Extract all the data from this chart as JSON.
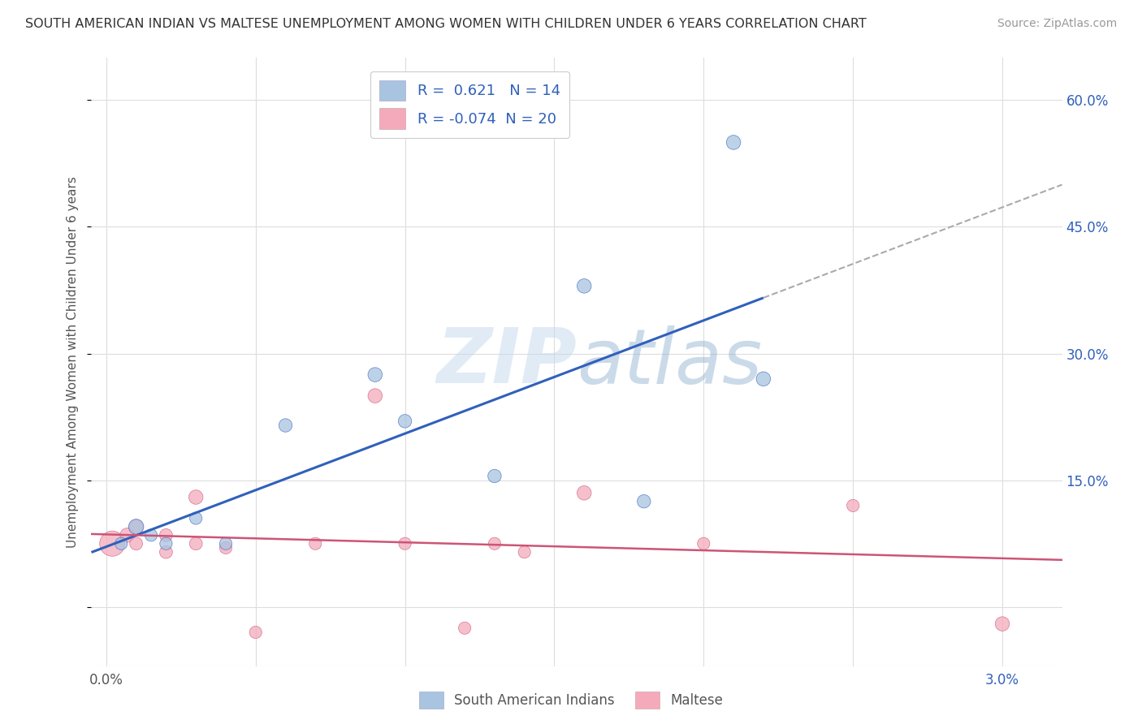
{
  "title": "SOUTH AMERICAN INDIAN VS MALTESE UNEMPLOYMENT AMONG WOMEN WITH CHILDREN UNDER 6 YEARS CORRELATION CHART",
  "source": "Source: ZipAtlas.com",
  "ylabel": "Unemployment Among Women with Children Under 6 years",
  "r_blue": 0.621,
  "n_blue": 14,
  "r_pink": -0.074,
  "n_pink": 20,
  "legend_labels": [
    "South American Indians",
    "Maltese"
  ],
  "blue_color": "#A8C4E0",
  "pink_color": "#F4AABB",
  "blue_line_color": "#3060BB",
  "pink_line_color": "#CC5577",
  "dashed_line_color": "#AAAAAA",
  "watermark_color": "#C5D8EE",
  "background_color": "#FFFFFF",
  "grid_color": "#DDDDDD",
  "title_color": "#333333",
  "source_color": "#999999",
  "right_tick_color": "#3060BB",
  "ylim": [
    -0.07,
    0.65
  ],
  "xlim": [
    -0.0005,
    0.032
  ],
  "ytick_values": [
    0.0,
    0.15,
    0.3,
    0.45,
    0.6
  ],
  "blue_scatter_x": [
    0.0005,
    0.001,
    0.0015,
    0.002,
    0.003,
    0.004,
    0.006,
    0.009,
    0.01,
    0.013,
    0.016,
    0.018,
    0.021,
    0.022
  ],
  "blue_scatter_y": [
    0.075,
    0.095,
    0.085,
    0.075,
    0.105,
    0.075,
    0.215,
    0.275,
    0.22,
    0.155,
    0.38,
    0.125,
    0.55,
    0.27
  ],
  "blue_scatter_sizes": [
    120,
    180,
    120,
    120,
    120,
    120,
    140,
    160,
    140,
    140,
    160,
    140,
    160,
    160
  ],
  "pink_scatter_x": [
    0.0002,
    0.0007,
    0.001,
    0.001,
    0.002,
    0.002,
    0.003,
    0.003,
    0.004,
    0.005,
    0.007,
    0.009,
    0.01,
    0.012,
    0.013,
    0.014,
    0.016,
    0.02,
    0.025,
    0.03
  ],
  "pink_scatter_y": [
    0.075,
    0.085,
    0.075,
    0.095,
    0.085,
    0.065,
    0.075,
    0.13,
    0.07,
    -0.03,
    0.075,
    0.25,
    0.075,
    -0.025,
    0.075,
    0.065,
    0.135,
    0.075,
    0.12,
    -0.02
  ],
  "pink_scatter_sizes": [
    500,
    160,
    130,
    160,
    130,
    130,
    130,
    160,
    120,
    120,
    120,
    160,
    120,
    120,
    120,
    120,
    160,
    120,
    120,
    160
  ]
}
